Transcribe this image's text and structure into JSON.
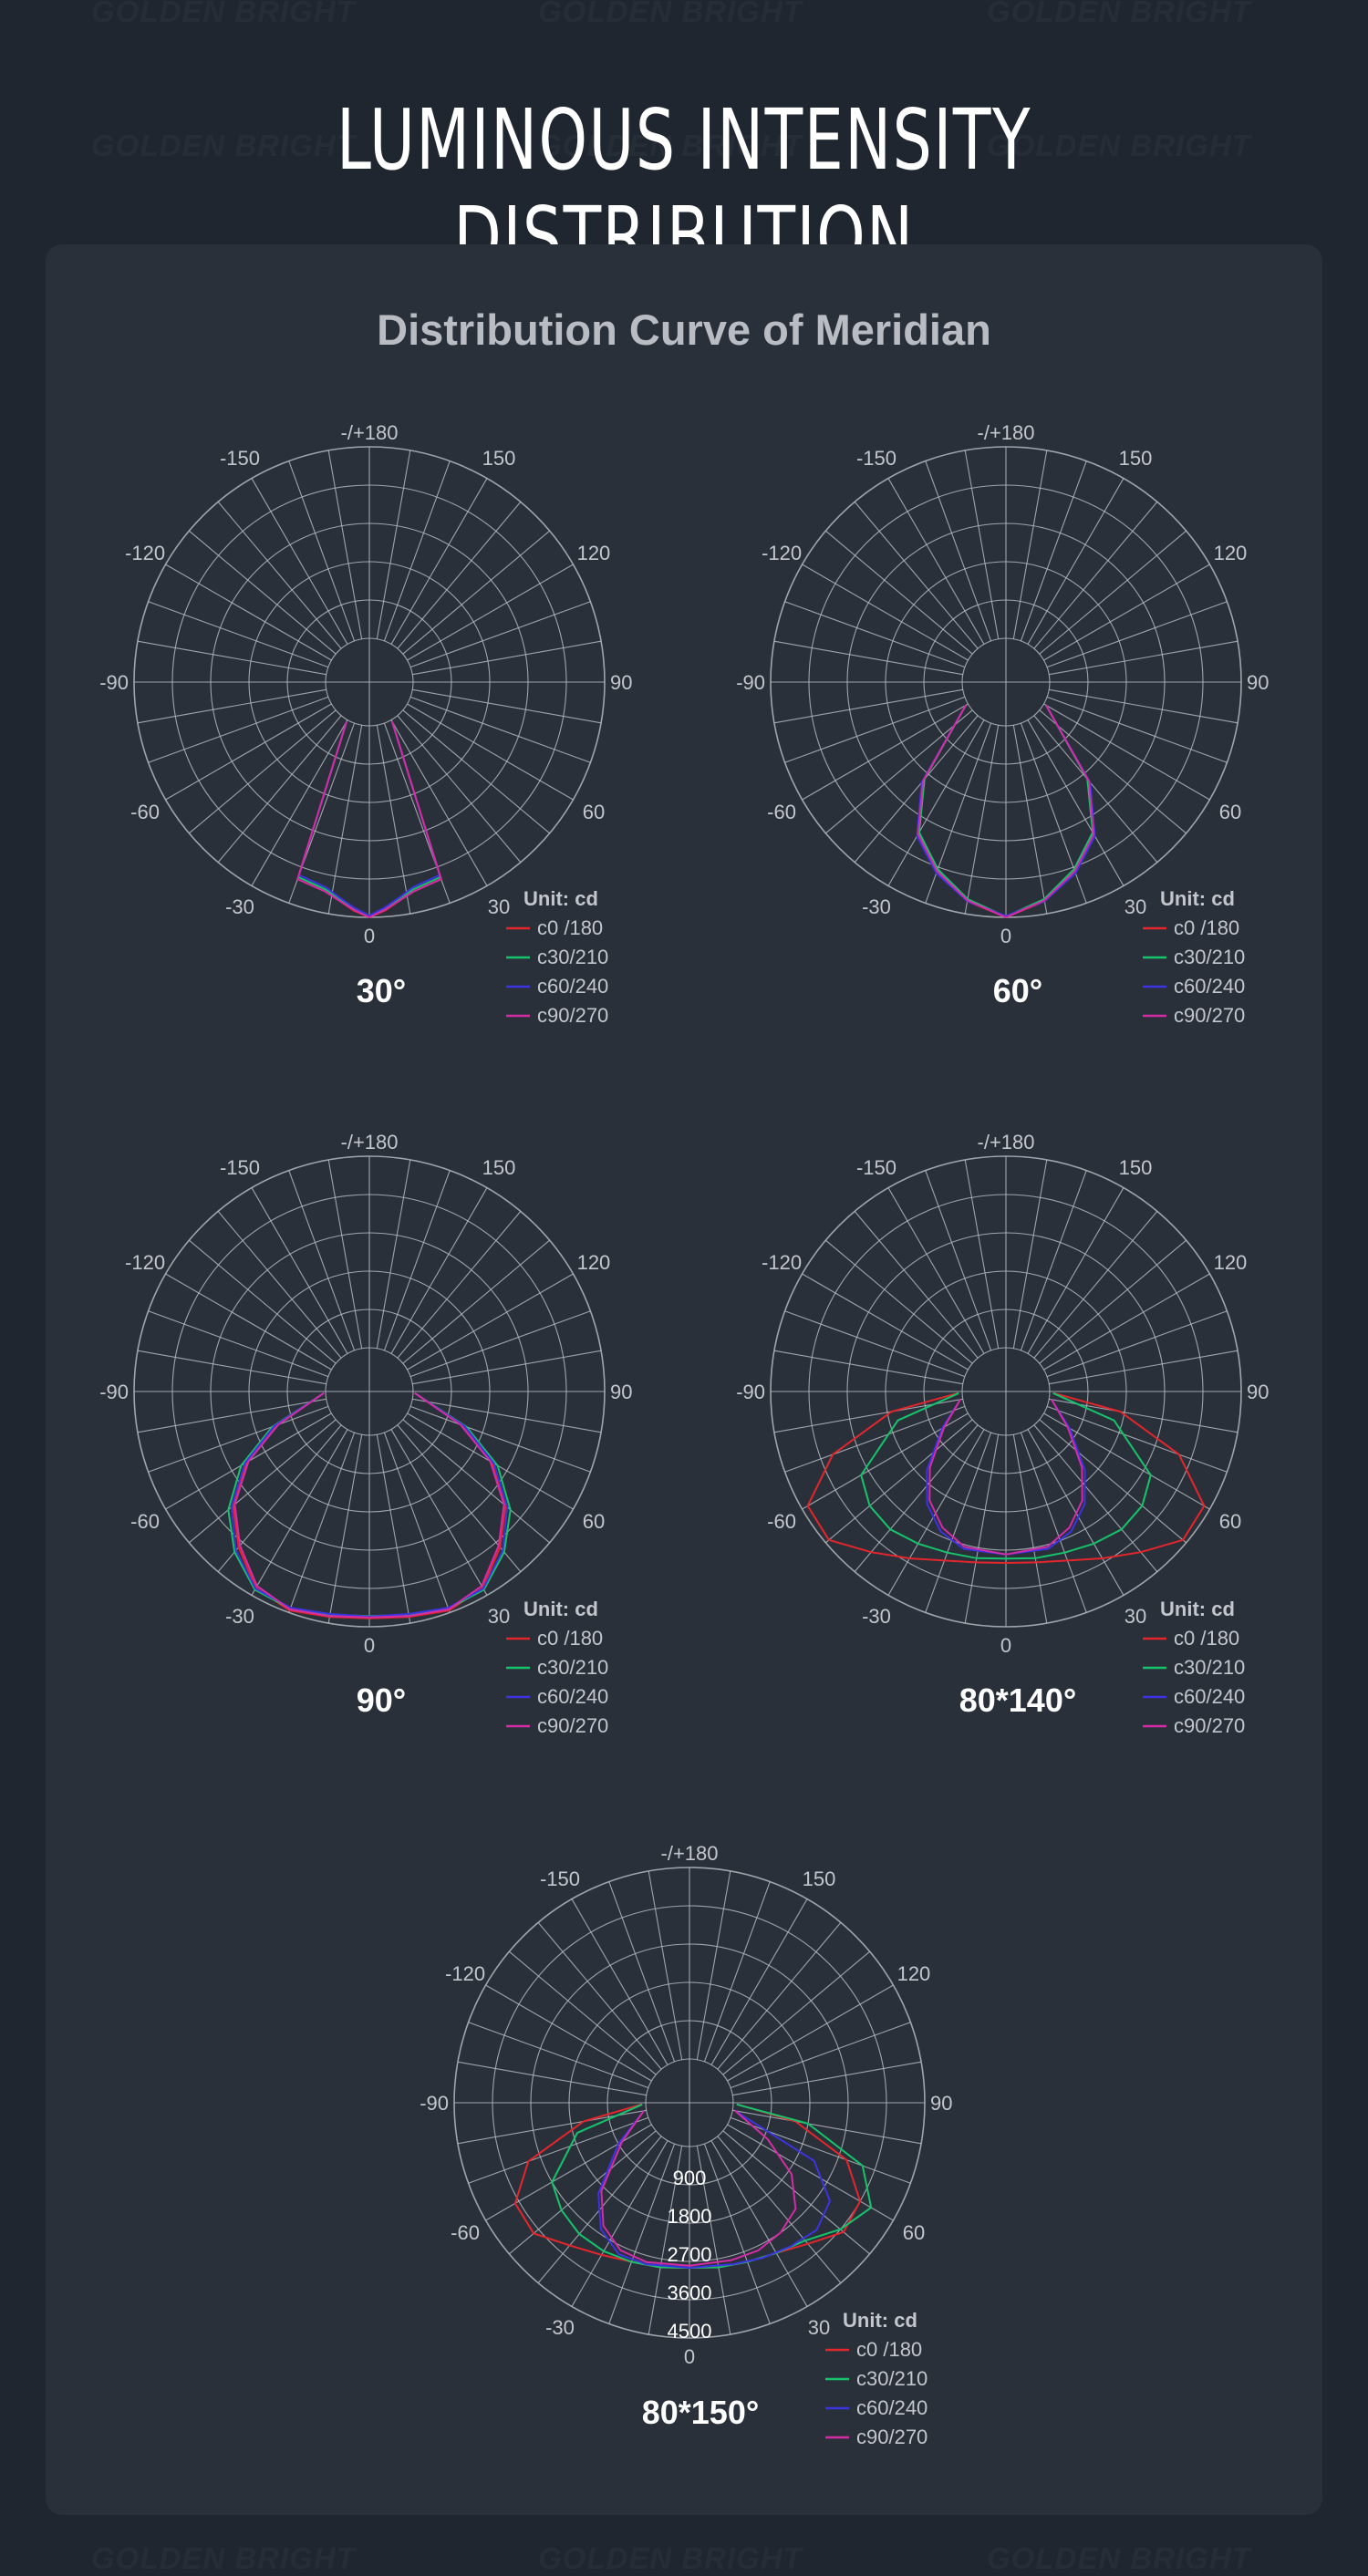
{
  "page": {
    "title": "LUMINOUS INTENSITY DISTRIBUTION",
    "subtitle": "Distribution Curve of Meridian",
    "watermark_text": "GOLDEN BRIGHT"
  },
  "colors": {
    "background": "#1f2630",
    "panel": "#2a303a",
    "grid": "#b4b8c0",
    "c0_180": "#e3262c",
    "c30_210": "#16c36b",
    "c60_240": "#3b34e0",
    "c90_270": "#d42ca5"
  },
  "chart_data": [
    {
      "type": "polar",
      "caption": "30°",
      "unit_label": "Unit: cd",
      "angle_labels": [
        "-/+180",
        "150",
        "120",
        "90",
        "60",
        "30",
        "0",
        "-30",
        "-60",
        "-90",
        "-120",
        "-150"
      ],
      "radial_tick_labels": [],
      "r_max": 4500,
      "series": [
        {
          "name": "c0 /180",
          "angles": [
            -30,
            -20,
            -12,
            -8,
            -4,
            0,
            4,
            8,
            12,
            20,
            30
          ],
          "values": [
            40,
            3900,
            4000,
            4150,
            4350,
            4500,
            4350,
            4150,
            4000,
            3900,
            40
          ]
        },
        {
          "name": "c30/210",
          "angles": [
            -30,
            -20,
            -12,
            -8,
            -4,
            0,
            4,
            8,
            12,
            20,
            30
          ],
          "values": [
            40,
            3850,
            3950,
            4100,
            4300,
            4480,
            4300,
            4100,
            3950,
            3850,
            40
          ]
        },
        {
          "name": "c60/240",
          "angles": [
            -30,
            -20,
            -12,
            -8,
            -4,
            0,
            4,
            8,
            12,
            20,
            30
          ],
          "values": [
            40,
            3800,
            3900,
            4080,
            4280,
            4460,
            4280,
            4080,
            3900,
            3800,
            40
          ]
        },
        {
          "name": "c90/270",
          "angles": [
            -30,
            -20,
            -12,
            -8,
            -4,
            0,
            4,
            8,
            12,
            20,
            30
          ],
          "values": [
            40,
            3900,
            4000,
            4150,
            4330,
            4500,
            4330,
            4150,
            4000,
            3900,
            40
          ]
        }
      ]
    },
    {
      "type": "polar",
      "caption": "60°",
      "unit_label": "Unit: cd",
      "angle_labels": [
        "-/+180",
        "150",
        "120",
        "90",
        "60",
        "30",
        "0",
        "-30",
        "-60",
        "-90",
        "-120",
        "-150"
      ],
      "radial_tick_labels": [],
      "r_max": 4500,
      "series": [
        {
          "name": "c0 /180",
          "angles": [
            -60,
            -40,
            -30,
            -20,
            -10,
            0,
            10,
            20,
            30,
            40,
            60
          ],
          "values": [
            60,
            2000,
            3100,
            3700,
            4200,
            4500,
            4200,
            3700,
            3100,
            2000,
            60
          ]
        },
        {
          "name": "c30/210",
          "angles": [
            -60,
            -40,
            -30,
            -20,
            -10,
            0,
            10,
            20,
            30,
            40,
            60
          ],
          "values": [
            60,
            1950,
            3050,
            3650,
            4150,
            4480,
            4150,
            3650,
            3050,
            1950,
            60
          ]
        },
        {
          "name": "c60/240",
          "angles": [
            -60,
            -40,
            -30,
            -20,
            -10,
            0,
            10,
            20,
            30,
            40,
            60
          ],
          "values": [
            60,
            2050,
            3150,
            3750,
            4200,
            4470,
            4200,
            3750,
            3150,
            2050,
            60
          ]
        },
        {
          "name": "c90/270",
          "angles": [
            -60,
            -40,
            -30,
            -20,
            -10,
            0,
            10,
            20,
            30,
            40,
            60
          ],
          "values": [
            60,
            2000,
            3100,
            3700,
            4180,
            4500,
            4180,
            3700,
            3100,
            2000,
            60
          ]
        }
      ]
    },
    {
      "type": "polar",
      "caption": "90°",
      "unit_label": "Unit: cd",
      "angle_labels": [
        "-/+180",
        "150",
        "120",
        "90",
        "60",
        "30",
        "0",
        "-30",
        "-60",
        "-90",
        "-120",
        "-150"
      ],
      "radial_tick_labels": [],
      "r_max": 4500,
      "series": [
        {
          "name": "c0 /180",
          "angles": [
            -88,
            -70,
            -60,
            -50,
            -40,
            -30,
            -20,
            -10,
            0,
            10,
            20,
            30,
            40,
            50,
            60,
            70,
            88
          ],
          "values": [
            40,
            1300,
            2300,
            3150,
            3750,
            4300,
            4450,
            4350,
            4300,
            4350,
            4450,
            4300,
            3750,
            3150,
            2300,
            1300,
            40
          ]
        },
        {
          "name": "c30/210",
          "angles": [
            -88,
            -70,
            -60,
            -50,
            -40,
            -30,
            -20,
            -10,
            0,
            10,
            20,
            30,
            40,
            50,
            60,
            70,
            88
          ],
          "values": [
            40,
            1400,
            2450,
            3300,
            3900,
            4350,
            4400,
            4300,
            4250,
            4300,
            4400,
            4350,
            3900,
            3300,
            2450,
            1400,
            40
          ]
        },
        {
          "name": "c60/240",
          "angles": [
            -88,
            -70,
            -60,
            -50,
            -40,
            -30,
            -20,
            -10,
            0,
            10,
            20,
            30,
            40,
            50,
            60,
            70,
            88
          ],
          "values": [
            40,
            1350,
            2350,
            3200,
            3850,
            4320,
            4380,
            4280,
            4260,
            4280,
            4380,
            4320,
            3850,
            3200,
            2350,
            1350,
            40
          ]
        },
        {
          "name": "c90/270",
          "angles": [
            -88,
            -70,
            -60,
            -50,
            -40,
            -30,
            -20,
            -10,
            0,
            10,
            20,
            30,
            40,
            50,
            60,
            70,
            88
          ],
          "values": [
            40,
            1250,
            2250,
            3100,
            3700,
            4250,
            4420,
            4330,
            4280,
            4330,
            4420,
            4250,
            3700,
            3100,
            2250,
            1250,
            40
          ]
        }
      ]
    },
    {
      "type": "polar",
      "caption": "80*140°",
      "unit_label": "Unit: cd",
      "angle_labels": [
        "-/+180",
        "150",
        "120",
        "90",
        "60",
        "30",
        "0",
        "-30",
        "-60",
        "-90",
        "-120",
        "-150"
      ],
      "radial_tick_labels": [],
      "r_max": 4500,
      "series": [
        {
          "name": "c0 /180",
          "angles": [
            -88,
            -80,
            -70,
            -60,
            -50,
            -40,
            -30,
            -20,
            -10,
            0,
            10,
            20,
            30,
            40,
            50,
            60,
            70,
            80,
            88
          ],
          "values": [
            100,
            1700,
            3300,
            4350,
            4400,
            3900,
            3500,
            3200,
            3050,
            3000,
            3050,
            3200,
            3500,
            3900,
            4400,
            4350,
            3300,
            1700,
            100
          ]
        },
        {
          "name": "c30/210",
          "angles": [
            -88,
            -75,
            -60,
            -50,
            -40,
            -30,
            -20,
            -10,
            0,
            10,
            20,
            30,
            40,
            50,
            60,
            75,
            88
          ],
          "values": [
            80,
            1600,
            2900,
            3150,
            3200,
            3100,
            3000,
            2950,
            2900,
            2950,
            3000,
            3100,
            3200,
            3150,
            2900,
            1600,
            80
          ]
        },
        {
          "name": "c60/240",
          "angles": [
            -80,
            -60,
            -45,
            -35,
            -25,
            -15,
            0,
            15,
            25,
            35,
            45,
            60,
            80
          ],
          "values": [
            60,
            700,
            1600,
            2200,
            2600,
            2800,
            2800,
            2800,
            2600,
            2200,
            1600,
            700,
            60
          ]
        },
        {
          "name": "c90/270",
          "angles": [
            -80,
            -60,
            -45,
            -35,
            -25,
            -15,
            0,
            15,
            25,
            35,
            45,
            60,
            80
          ],
          "values": [
            60,
            650,
            1500,
            2100,
            2500,
            2750,
            2800,
            2750,
            2500,
            2100,
            1500,
            650,
            60
          ]
        }
      ]
    },
    {
      "type": "polar",
      "caption": "80*150°",
      "unit_label": "Unit: cd",
      "angle_labels": [
        "-/+180",
        "150",
        "120",
        "90",
        "60",
        "30",
        "0",
        "-30",
        "-60",
        "-90",
        "-120",
        "-150"
      ],
      "radial_tick_labels": [
        "900",
        "1800",
        "2700",
        "3600",
        "4500"
      ],
      "r_max": 4500,
      "series": [
        {
          "name": "c0 /180",
          "angles": [
            -88,
            -80,
            -70,
            -60,
            -50,
            -40,
            -30,
            -20,
            -10,
            0,
            10,
            20,
            30,
            40,
            50,
            60,
            70,
            80,
            88
          ],
          "values": [
            100,
            1500,
            3000,
            3700,
            3750,
            3350,
            3100,
            2950,
            2900,
            2850,
            2900,
            2950,
            3050,
            3300,
            3700,
            3600,
            2900,
            1500,
            100
          ]
        },
        {
          "name": "c30/210",
          "angles": [
            -88,
            -75,
            -60,
            -50,
            -40,
            -30,
            -20,
            -10,
            0,
            10,
            20,
            30,
            40,
            50,
            60,
            70,
            80,
            88
          ],
          "values": [
            80,
            1700,
            2700,
            2900,
            3000,
            3000,
            2950,
            2900,
            2850,
            2900,
            2950,
            3050,
            3200,
            3600,
            3900,
            3300,
            1800,
            80
          ]
        },
        {
          "name": "c60/240",
          "angles": [
            -80,
            -60,
            -45,
            -35,
            -25,
            -15,
            0,
            15,
            25,
            35,
            45,
            55,
            65,
            80
          ],
          "values": [
            60,
            900,
            2000,
            2600,
            2900,
            2900,
            2850,
            2900,
            3000,
            3100,
            3200,
            3000,
            2200,
            60
          ]
        },
        {
          "name": "c90/270",
          "angles": [
            -80,
            -60,
            -45,
            -35,
            -25,
            -15,
            0,
            15,
            25,
            35,
            45,
            55,
            65,
            80
          ],
          "values": [
            60,
            800,
            1900,
            2500,
            2800,
            2850,
            2800,
            2800,
            2800,
            2700,
            2500,
            1900,
            1000,
            60
          ]
        }
      ]
    }
  ]
}
